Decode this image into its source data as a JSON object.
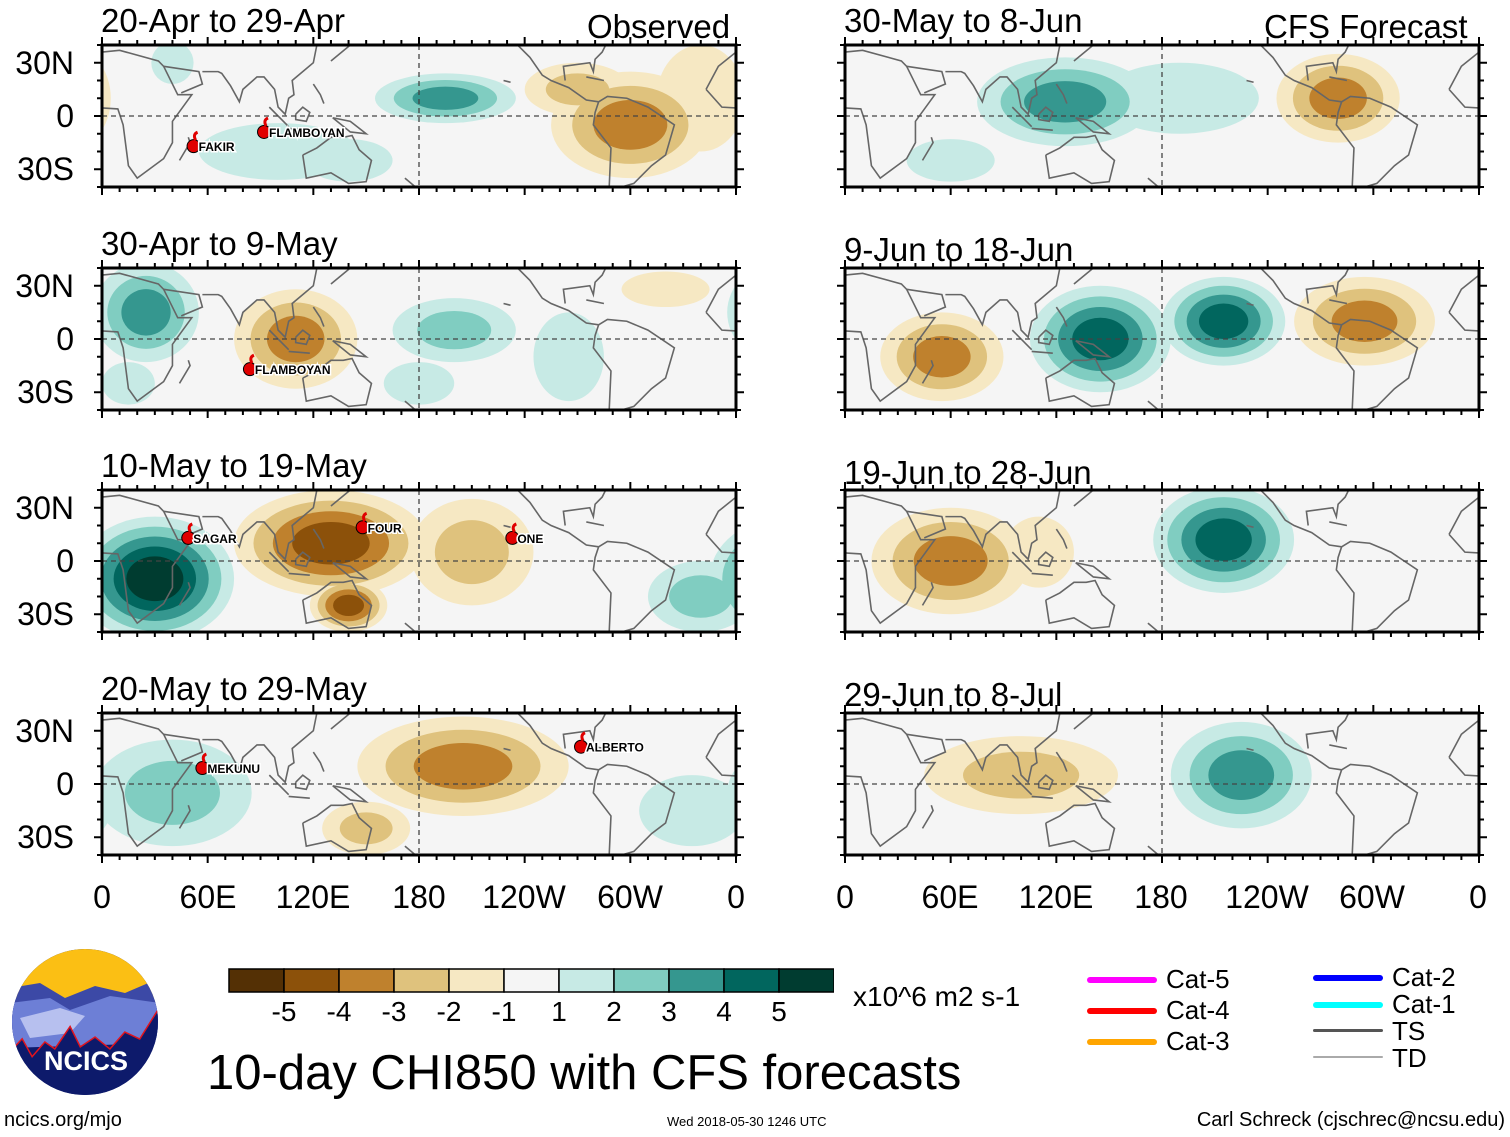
{
  "header": {
    "observed_label": "Observed",
    "forecast_label": "CFS Forecast"
  },
  "panels": [
    {
      "title": "20-Apr to 29-Apr",
      "column": "observed",
      "blobs": [
        {
          "lon": 195,
          "lat": 10,
          "rx": 40,
          "ry": 14,
          "peak": 3
        },
        {
          "lon": 100,
          "lat": -20,
          "rx": 45,
          "ry": 16,
          "peak": 1
        },
        {
          "lon": 40,
          "lat": 30,
          "rx": 12,
          "ry": 12,
          "peak": 1
        },
        {
          "lon": 140,
          "lat": -25,
          "rx": 25,
          "ry": 12,
          "peak": 1
        },
        {
          "lon": 300,
          "lat": -5,
          "rx": 45,
          "ry": 30,
          "peak": -3
        },
        {
          "lon": 270,
          "lat": 15,
          "rx": 30,
          "ry": 15,
          "peak": -2
        },
        {
          "lon": 340,
          "lat": 10,
          "rx": 25,
          "ry": 30,
          "peak": -1
        }
      ],
      "storms": [
        {
          "name": "FAKIR",
          "lon": 52,
          "lat": -17,
          "cat": "1"
        },
        {
          "name": "FLAMBOYAN",
          "lon": 92,
          "lat": -9,
          "cat": "1"
        }
      ]
    },
    {
      "title": "30-Apr to 9-May",
      "column": "observed",
      "blobs": [
        {
          "lon": 25,
          "lat": 15,
          "rx": 30,
          "ry": 28,
          "peak": 3
        },
        {
          "lon": 15,
          "lat": -25,
          "rx": 15,
          "ry": 12,
          "peak": 1
        },
        {
          "lon": 110,
          "lat": 0,
          "rx": 35,
          "ry": 28,
          "peak": -3
        },
        {
          "lon": 200,
          "lat": 5,
          "rx": 35,
          "ry": 18,
          "peak": 2
        },
        {
          "lon": 180,
          "lat": -25,
          "rx": 20,
          "ry": 12,
          "peak": 1
        },
        {
          "lon": 320,
          "lat": 28,
          "rx": 25,
          "ry": 10,
          "peak": -1
        },
        {
          "lon": 265,
          "lat": -10,
          "rx": 20,
          "ry": 25,
          "peak": 1
        }
      ],
      "storms": [
        {
          "name": "FLAMBOYAN",
          "lon": 84,
          "lat": -17,
          "cat": "1"
        }
      ]
    },
    {
      "title": "10-May to 19-May",
      "column": "observed",
      "blobs": [
        {
          "lon": 30,
          "lat": -10,
          "rx": 45,
          "ry": 35,
          "peak": 5
        },
        {
          "lon": 130,
          "lat": 10,
          "rx": 55,
          "ry": 30,
          "peak": -4
        },
        {
          "lon": 140,
          "lat": -25,
          "rx": 22,
          "ry": 15,
          "peak": -4
        },
        {
          "lon": 210,
          "lat": 5,
          "rx": 35,
          "ry": 30,
          "peak": -2
        },
        {
          "lon": 340,
          "lat": -20,
          "rx": 30,
          "ry": 20,
          "peak": 2
        }
      ],
      "storms": [
        {
          "name": "SAGAR",
          "lon": 49,
          "lat": 13,
          "cat": "S"
        },
        {
          "name": "FOUR",
          "lon": 148,
          "lat": 19,
          "cat": "4"
        },
        {
          "name": "ONE",
          "lon": 233,
          "lat": 13,
          "cat": "1"
        }
      ]
    },
    {
      "title": "20-May to 29-May",
      "column": "observed",
      "blobs": [
        {
          "lon": 40,
          "lat": -5,
          "rx": 45,
          "ry": 30,
          "peak": 2
        },
        {
          "lon": 205,
          "lat": 10,
          "rx": 60,
          "ry": 28,
          "peak": -3
        },
        {
          "lon": 150,
          "lat": -25,
          "rx": 25,
          "ry": 15,
          "peak": -2
        },
        {
          "lon": 335,
          "lat": -15,
          "rx": 30,
          "ry": 20,
          "peak": 1
        }
      ],
      "storms": [
        {
          "name": "MEKUNU",
          "lon": 57,
          "lat": 9,
          "cat": "M"
        },
        {
          "name": "ALBERTO",
          "lon": 272,
          "lat": 21,
          "cat": "A"
        }
      ]
    },
    {
      "title": "30-May to 8-Jun",
      "column": "forecast",
      "blobs": [
        {
          "lon": 125,
          "lat": 8,
          "rx": 50,
          "ry": 25,
          "peak": 3
        },
        {
          "lon": 190,
          "lat": 10,
          "rx": 45,
          "ry": 20,
          "peak": 1
        },
        {
          "lon": 60,
          "lat": -25,
          "rx": 25,
          "ry": 12,
          "peak": 1
        },
        {
          "lon": 280,
          "lat": 10,
          "rx": 35,
          "ry": 25,
          "peak": -3
        }
      ],
      "storms": []
    },
    {
      "title": "9-Jun to 18-Jun",
      "column": "forecast",
      "blobs": [
        {
          "lon": 145,
          "lat": 0,
          "rx": 40,
          "ry": 30,
          "peak": 4
        },
        {
          "lon": 215,
          "lat": 10,
          "rx": 35,
          "ry": 25,
          "peak": 4
        },
        {
          "lon": 55,
          "lat": -10,
          "rx": 35,
          "ry": 25,
          "peak": -3
        },
        {
          "lon": 295,
          "lat": 10,
          "rx": 40,
          "ry": 25,
          "peak": -3
        }
      ],
      "storms": []
    },
    {
      "title": "19-Jun to 28-Jun",
      "column": "forecast",
      "blobs": [
        {
          "lon": 215,
          "lat": 12,
          "rx": 40,
          "ry": 30,
          "peak": 4
        },
        {
          "lon": 60,
          "lat": 0,
          "rx": 45,
          "ry": 30,
          "peak": -3
        },
        {
          "lon": 110,
          "lat": 5,
          "rx": 20,
          "ry": 20,
          "peak": -1
        }
      ],
      "storms": []
    },
    {
      "title": "29-Jun to 8-Jul",
      "column": "forecast",
      "blobs": [
        {
          "lon": 225,
          "lat": 5,
          "rx": 40,
          "ry": 30,
          "peak": 3
        },
        {
          "lon": 100,
          "lat": 5,
          "rx": 55,
          "ry": 22,
          "peak": -2
        }
      ],
      "storms": []
    }
  ],
  "axes": {
    "y_labels": [
      "30N",
      "0",
      "30S"
    ],
    "x_labels": [
      "0",
      "60E",
      "120E",
      "180",
      "120W",
      "60W",
      "0"
    ]
  },
  "colorbar": {
    "colors": [
      "#543005",
      "#8c510a",
      "#bf812d",
      "#dfc27d",
      "#f6e8c3",
      "#f5f5f5",
      "#c7eae5",
      "#80cdc1",
      "#35978f",
      "#01665e",
      "#003c30"
    ],
    "labels": [
      "-5",
      "-4",
      "-3",
      "-2",
      "-1",
      "1",
      "2",
      "3",
      "4",
      "5"
    ],
    "units": "x10^6 m2 s-1"
  },
  "legend": [
    {
      "label": "Cat-5",
      "color": "#ff00ff"
    },
    {
      "label": "Cat-4",
      "color": "#ff0000"
    },
    {
      "label": "Cat-3",
      "color": "#ffa500"
    },
    {
      "label": "Cat-2",
      "color": "#0000ff"
    },
    {
      "label": "Cat-1",
      "color": "#00ffff"
    },
    {
      "label": "TS",
      "color": "#555555"
    },
    {
      "label": "TD",
      "color": "#aaaaaa"
    }
  ],
  "footer": {
    "title": "10-day CHI850 with CFS forecasts",
    "logo_text": "NCICS",
    "website": "ncics.org/mjo",
    "timestamp": "Wed 2018-05-30 1246 UTC",
    "author": "Carl Schreck (cjschrec@ncsu.edu)"
  }
}
